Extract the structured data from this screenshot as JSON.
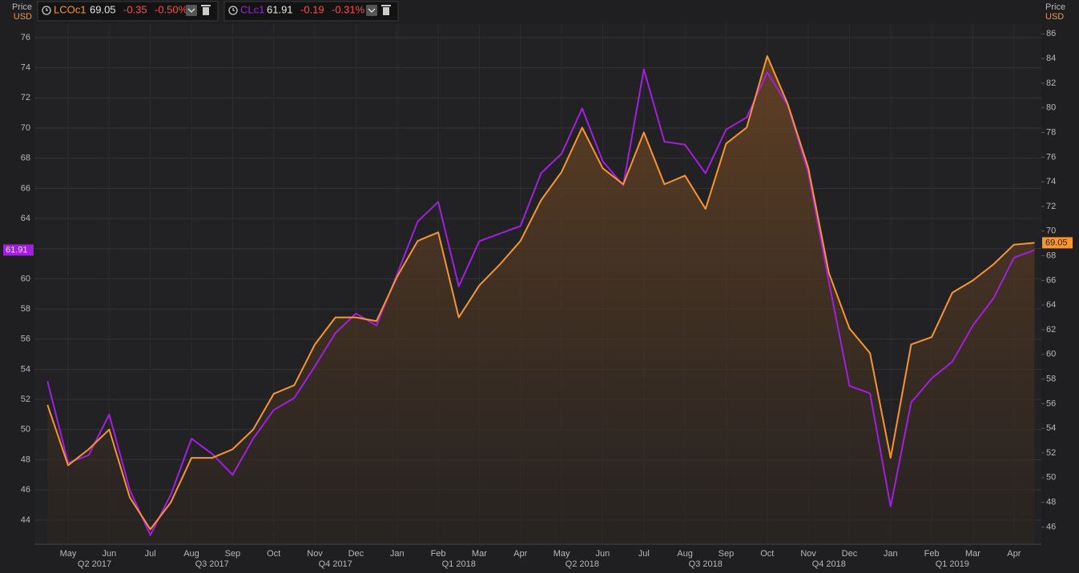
{
  "chart_data": {
    "type": "line",
    "axis_header": {
      "left": [
        "Price",
        "USD"
      ],
      "right": [
        "Price",
        "USD"
      ]
    },
    "categories": [
      null,
      "May",
      null,
      "Jun",
      null,
      "Jul",
      null,
      "Aug",
      null,
      "Sep",
      null,
      "Oct",
      null,
      "Nov",
      null,
      "Dec",
      null,
      "Jan",
      null,
      "Feb",
      null,
      "Mar",
      null,
      "Apr",
      null,
      "May",
      null,
      "Jun",
      null,
      "Jul",
      null,
      "Aug",
      null,
      "Sep",
      null,
      "Oct",
      null,
      "Nov",
      null,
      "Dec",
      null,
      "Jan",
      null,
      "Feb",
      null,
      "Mar",
      null,
      "Apr",
      null
    ],
    "quarters": [
      "Q2 2017",
      "Q3 2017",
      "Q4 2017",
      "Q1 2018",
      "Q2 2018",
      "Q3 2018",
      "Q4 2018",
      "Q1 2019"
    ],
    "series": [
      {
        "name": "LCOc1",
        "color": "#f7962f",
        "axis": "y2",
        "change": -0.35,
        "change_pct": {
          "value": -0.5,
          "label": "-0.50%"
        },
        "values": [
          55.9,
          51.0,
          52.3,
          53.9,
          48.4,
          45.8,
          48.0,
          51.6,
          51.6,
          52.3,
          53.9,
          56.8,
          57.5,
          60.8,
          63.0,
          63.0,
          62.7,
          66.3,
          69.2,
          69.9,
          63.0,
          65.6,
          67.3,
          69.2,
          72.5,
          74.8,
          78.4,
          75.1,
          73.8,
          78.0,
          73.8,
          74.5,
          71.8,
          77.1,
          78.4,
          84.2,
          80.3,
          75.1,
          66.6,
          62.1,
          60.1,
          51.6,
          60.8,
          61.4,
          65.0,
          66.0,
          67.3,
          68.9,
          69.05
        ]
      },
      {
        "name": "CLc1",
        "color": "#a21fe0",
        "axis": "y",
        "change": -0.19,
        "change_pct": {
          "value": -0.31,
          "label": "-0.31%"
        },
        "values": [
          53.2,
          47.8,
          48.3,
          51.0,
          46.0,
          43.0,
          45.7,
          49.4,
          48.4,
          47.0,
          49.4,
          51.3,
          52.1,
          54.2,
          56.4,
          57.7,
          56.9,
          60.3,
          63.8,
          65.1,
          59.5,
          62.5,
          63.0,
          63.5,
          67.0,
          68.3,
          71.3,
          67.8,
          66.2,
          73.9,
          69.1,
          68.9,
          67.0,
          69.9,
          70.7,
          73.7,
          71.5,
          67.0,
          59.8,
          52.9,
          52.4,
          44.9,
          51.8,
          53.4,
          54.5,
          56.9,
          58.7,
          61.4,
          61.91
        ]
      }
    ],
    "ylim": [
      42.4,
      76.9
    ],
    "yticks": [
      44,
      46,
      48,
      50,
      52,
      54,
      56,
      58,
      60,
      62,
      64,
      66,
      68,
      70,
      72,
      74,
      76
    ],
    "y2lim": [
      44.6,
      86.8
    ],
    "y2ticks": [
      46,
      48,
      50,
      52,
      54,
      56,
      58,
      60,
      62,
      64,
      66,
      68,
      70,
      72,
      74,
      76,
      78,
      80,
      82,
      84,
      86
    ],
    "grid": true
  }
}
